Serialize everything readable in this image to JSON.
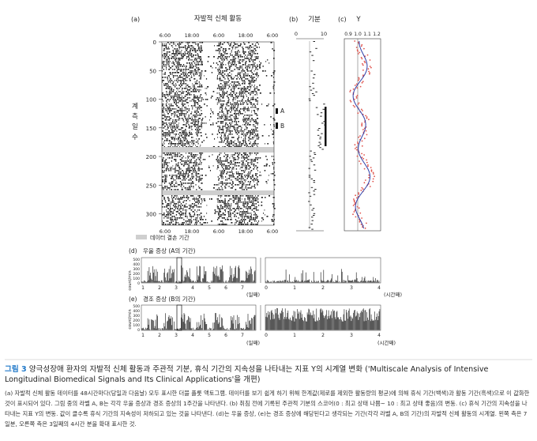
{
  "panels": {
    "a": {
      "label": "(a)",
      "title": "자발적 신체 활동",
      "time_ticks_top": [
        "6:00",
        "18:00",
        "6:00",
        "18:00",
        "6:00"
      ],
      "time_ticks_bottom": [
        "6:00",
        "18:00",
        "6:00",
        "18:00",
        "6:00"
      ],
      "y_axis_label": "계측일수",
      "y_ticks": [
        0,
        50,
        100,
        150,
        200,
        250,
        300
      ],
      "period_labels": [
        "A",
        "B"
      ],
      "legend_missing": "데이터 결손 기간"
    },
    "b": {
      "label": "(b)",
      "title": "기분",
      "x_ticks": [
        0,
        10
      ]
    },
    "c": {
      "label": "(c)",
      "title": "Y",
      "x_ticks": [
        "0.9",
        "1.0",
        "1.1",
        "1.2"
      ]
    },
    "d": {
      "label": "(d)",
      "title": "우울 증상 (A의 기간)",
      "y_axis_label": "count/min",
      "y_ticks": [
        "500",
        "400",
        "300",
        "200",
        "100",
        "0"
      ],
      "left_x_ticks": [
        "1",
        "2",
        "3",
        "4",
        "5",
        "6",
        "7"
      ],
      "left_x_unit": "(일째)",
      "right_x_ticks": [
        "0",
        "1",
        "2",
        "3",
        "4"
      ],
      "right_x_unit": "(시간째)"
    },
    "e": {
      "label": "(e)",
      "title": "경조 증상 (B의 기간)",
      "y_axis_label": "count/min",
      "y_ticks": [
        "500",
        "400",
        "300",
        "200",
        "100",
        "0"
      ],
      "left_x_ticks": [
        "1",
        "2",
        "3",
        "4",
        "5",
        "6",
        "7"
      ],
      "left_x_unit": "(일째)",
      "right_x_ticks": [
        "0",
        "1",
        "2",
        "3",
        "4"
      ],
      "right_x_unit": "(시간째)"
    }
  },
  "caption": {
    "figure_number": "그림 3",
    "title": "양극성장애 환자의 자발적 신체 활동과 주관적 기분, 휴식 기간의 지속성을 나타내는 지표 Y의 시계열 변화 ('Multiscale Analysis of Intensive Longitudinal Biomedical Signals and Its Clinical Applications'을 개편)",
    "body": "(a) 자발적 신체 활동 데이터를 48시간마다(당일과 다음날) 모두 표시한 더블 플롯 액토그램. 데이터를 보기 쉽게 하기 위해 한계값(제로를 제외한 활동량의 평균)에 의해 휴식 기간(백색)과 활동 기간(흑색)으로 이 값화한 것이 표시되어 있다. 그림 중의 라벨 A, B는 각각 우울 증상과 경조 증상의 1주간을 나타낸다. (b) 취침 전에 기록된 주관적 기분의 스코어(0 : 최고 상태 나쁨~ 10 : 최고 상태 좋음)의 변동. (c) 휴식 기간의 지속성을 나타내는 지표 Y의 변동. 값이 클수록 휴식 기간의 지속성이 저하되고 있는 것을 나타낸다. (d)는 우울 증상, (e)는 경조 증상에 해당된다고 생각되는 기간(각각 라벨 A, B의 기간)의 자발적 신체 활동의 시계열. 왼쪽 측은 7일분, 오른쪽 측은 3일째의 4시간 분을 확대 표시한 것."
  }
}
